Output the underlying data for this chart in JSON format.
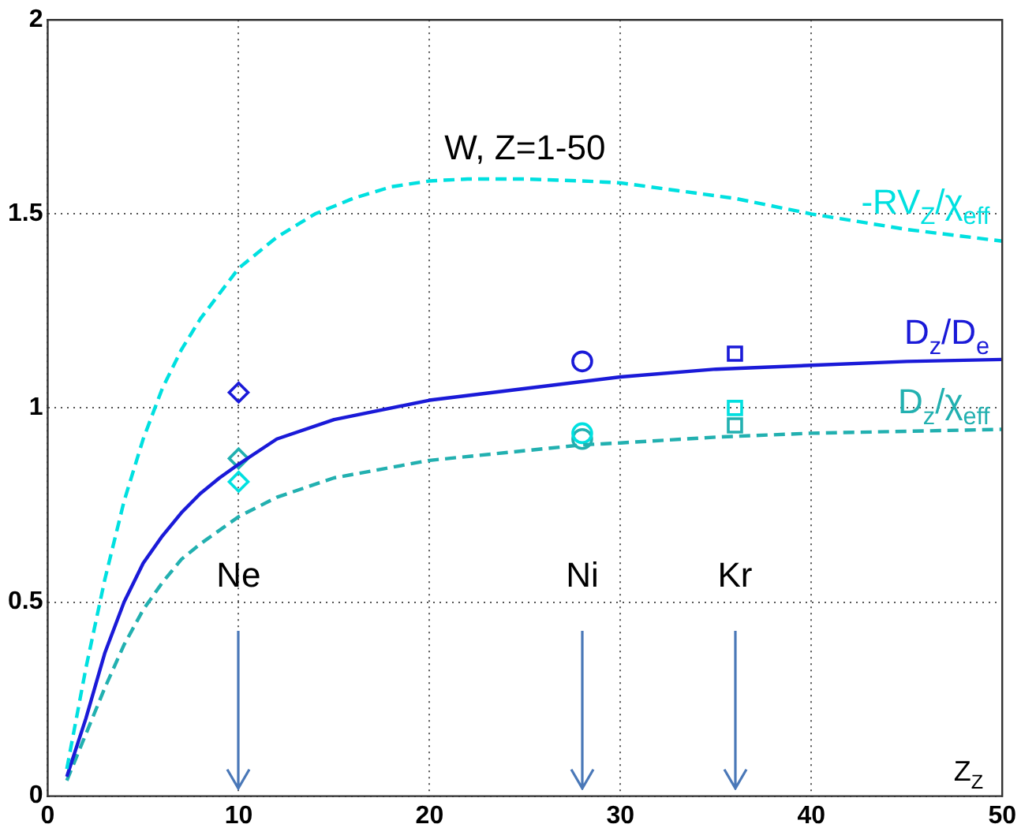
{
  "chart_data": {
    "type": "line",
    "xlabel": "Z$_{Z}$",
    "xlim": [
      0,
      50
    ],
    "xticks": [
      0,
      10,
      20,
      30,
      40,
      50
    ],
    "ylim": [
      0,
      2
    ],
    "yticks": [
      0,
      0.5,
      1,
      1.5,
      2
    ],
    "grid": true,
    "legend": false,
    "annotations": [
      "W, Z=1-50",
      "Ne",
      "Ni",
      "Kr"
    ],
    "series": [
      {
        "name": "-RV$_{Z}$/χ$_{eff}$",
        "color": "#00e0e0",
        "line_style": "dashed",
        "marker": "none",
        "x": [
          1,
          2,
          3,
          4,
          5,
          6,
          7,
          8,
          10,
          12,
          14,
          16,
          18,
          20,
          22,
          25,
          28,
          30,
          33,
          36,
          40,
          45,
          50
        ],
        "values": [
          0.07,
          0.33,
          0.56,
          0.76,
          0.92,
          1.05,
          1.15,
          1.23,
          1.36,
          1.44,
          1.5,
          1.54,
          1.57,
          1.585,
          1.59,
          1.59,
          1.585,
          1.58,
          1.56,
          1.54,
          1.5,
          1.46,
          1.43
        ]
      },
      {
        "name": "D$_{z}$/D$_{e}$",
        "color": "#1a1ad8",
        "line_style": "solid",
        "marker": "none",
        "x": [
          1,
          2,
          3,
          4,
          5,
          6,
          7,
          8,
          9,
          10,
          12,
          15,
          20,
          25,
          30,
          35,
          40,
          45,
          50
        ],
        "values": [
          0.05,
          0.2,
          0.37,
          0.5,
          0.6,
          0.67,
          0.73,
          0.78,
          0.82,
          0.855,
          0.92,
          0.97,
          1.02,
          1.05,
          1.08,
          1.1,
          1.11,
          1.12,
          1.125
        ]
      },
      {
        "name": "D$_{z}$/χ$_{eff}$",
        "color": "#22b0b0",
        "line_style": "dashed",
        "marker": "none",
        "x": [
          1,
          2,
          3,
          4,
          5,
          6,
          7,
          8,
          10,
          12,
          15,
          20,
          25,
          28,
          30,
          35,
          40,
          45,
          50
        ],
        "values": [
          0.04,
          0.16,
          0.28,
          0.39,
          0.48,
          0.55,
          0.61,
          0.65,
          0.72,
          0.77,
          0.82,
          0.865,
          0.89,
          0.905,
          0.91,
          0.925,
          0.935,
          0.94,
          0.945
        ]
      },
      {
        "type": "scatter",
        "marker": "diamond",
        "x": [
          10,
          10,
          10
        ],
        "values": [
          1.04,
          0.87,
          0.81
        ],
        "colors": [
          "#1a1ad8",
          "#22b0b0",
          "#00e0e0"
        ]
      },
      {
        "type": "scatter",
        "marker": "circle",
        "x": [
          28,
          28,
          28
        ],
        "values": [
          1.12,
          0.92,
          0.935
        ],
        "colors": [
          "#1a1ad8",
          "#22b0b0",
          "#00e0e0"
        ]
      },
      {
        "type": "scatter",
        "marker": "square",
        "x": [
          36,
          36,
          36
        ],
        "values": [
          1.14,
          0.955,
          1.0
        ],
        "colors": [
          "#1a1ad8",
          "#22b0b0",
          "#00e0e0"
        ]
      }
    ]
  }
}
